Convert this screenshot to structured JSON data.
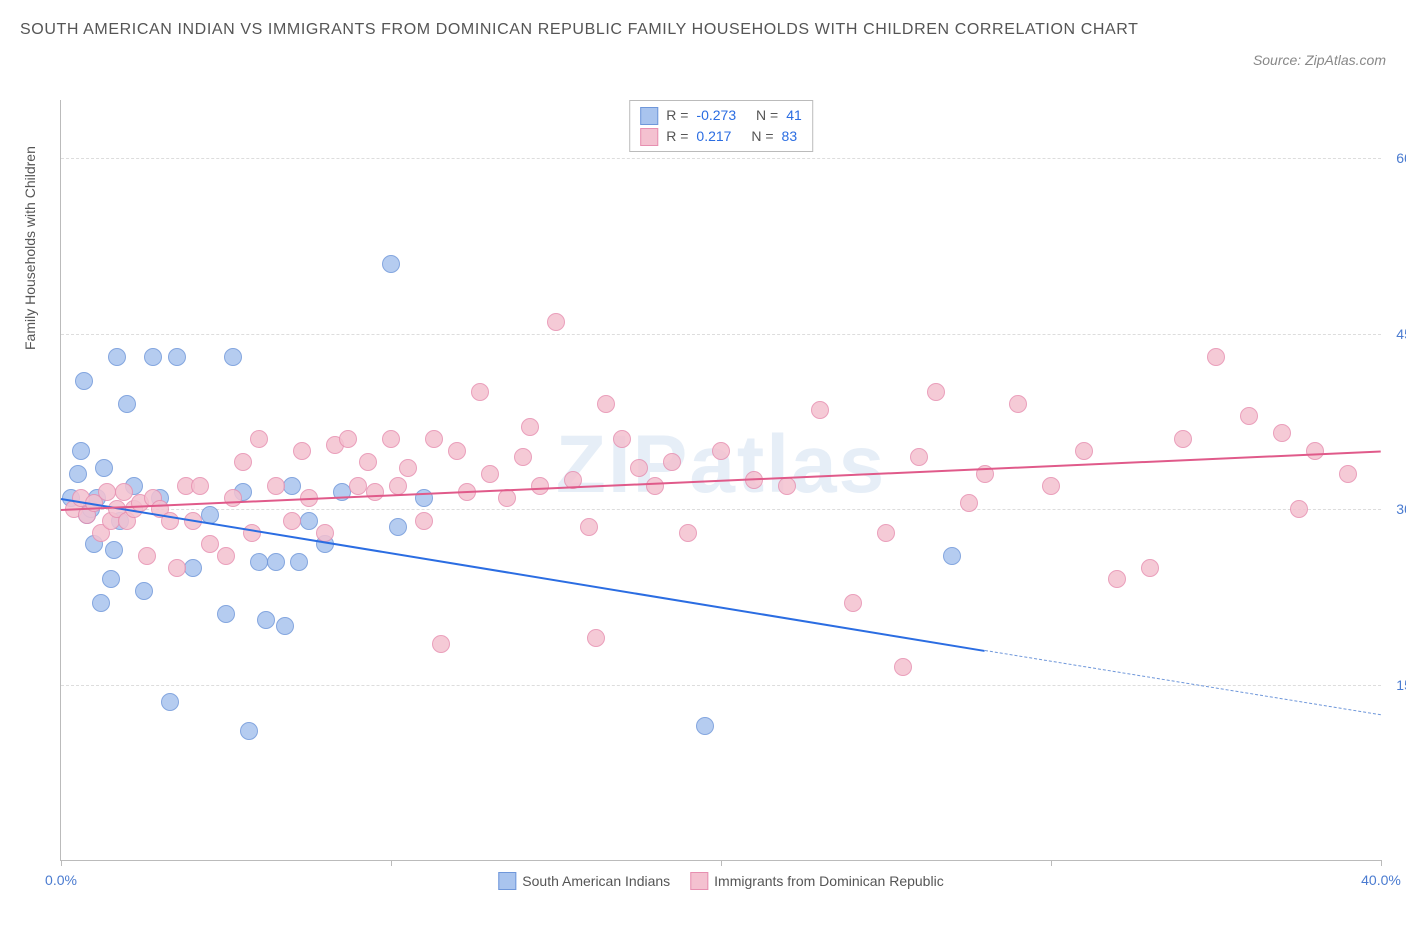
{
  "title": "SOUTH AMERICAN INDIAN VS IMMIGRANTS FROM DOMINICAN REPUBLIC FAMILY HOUSEHOLDS WITH CHILDREN CORRELATION CHART",
  "source_label": "Source: ZipAtlas.com",
  "watermark": "ZIPatlas",
  "yaxis_label": "Family Households with Children",
  "chart": {
    "type": "scatter",
    "background_color": "#ffffff",
    "grid_color": "#dddddd",
    "axis_color": "#bbbbbb",
    "xlim": [
      0,
      40
    ],
    "ylim": [
      0,
      65
    ],
    "x_ticks": [
      0,
      10,
      20,
      30,
      40
    ],
    "x_tick_labels": [
      "0.0%",
      "",
      "",
      "",
      "40.0%"
    ],
    "y_ticks": [
      15,
      30,
      45,
      60
    ],
    "y_tick_labels": [
      "15.0%",
      "30.0%",
      "45.0%",
      "60.0%"
    ],
    "marker_radius": 8,
    "marker_stroke_width": 1.5,
    "marker_fill_opacity": 0.25
  },
  "series": [
    {
      "id": "sai",
      "name": "South American Indians",
      "color_fill": "#a9c4ee",
      "color_stroke": "#6f97da",
      "r_label": "R =",
      "r_value": "-0.273",
      "n_label": "N =",
      "n_value": "41",
      "trend": {
        "x1": 0,
        "y1": 31,
        "x2": 28,
        "y2": 18,
        "color": "#2b6de2",
        "width": 2.5,
        "dash": "none"
      },
      "trend_ext": {
        "x1": 28,
        "y1": 18,
        "x2": 40,
        "y2": 12.5,
        "color": "#6f97da",
        "width": 1.5,
        "dash": "5,4"
      },
      "points": [
        [
          0.3,
          31
        ],
        [
          0.5,
          33
        ],
        [
          0.7,
          41
        ],
        [
          0.8,
          29.5
        ],
        [
          0.9,
          30
        ],
        [
          1.0,
          27
        ],
        [
          1.1,
          31
        ],
        [
          1.3,
          33.5
        ],
        [
          1.5,
          24
        ],
        [
          1.6,
          26.5
        ],
        [
          1.7,
          43
        ],
        [
          1.8,
          29
        ],
        [
          2.0,
          39
        ],
        [
          2.2,
          32
        ],
        [
          2.5,
          23
        ],
        [
          2.8,
          43
        ],
        [
          3.0,
          31
        ],
        [
          3.3,
          13.5
        ],
        [
          3.5,
          43
        ],
        [
          4.0,
          25
        ],
        [
          4.5,
          29.5
        ],
        [
          5.0,
          21
        ],
        [
          5.2,
          43
        ],
        [
          5.5,
          31.5
        ],
        [
          5.7,
          11
        ],
        [
          6.0,
          25.5
        ],
        [
          6.2,
          20.5
        ],
        [
          6.5,
          25.5
        ],
        [
          6.8,
          20
        ],
        [
          7.0,
          32
        ],
        [
          7.2,
          25.5
        ],
        [
          7.5,
          29
        ],
        [
          8.0,
          27
        ],
        [
          8.5,
          31.5
        ],
        [
          10.0,
          51
        ],
        [
          10.2,
          28.5
        ],
        [
          11.0,
          31
        ],
        [
          19.5,
          11.5
        ],
        [
          27.0,
          26
        ],
        [
          1.2,
          22
        ],
        [
          0.6,
          35
        ]
      ]
    },
    {
      "id": "dom",
      "name": "Immigrants from Dominican Republic",
      "color_fill": "#f4c1d0",
      "color_stroke": "#e78fb0",
      "r_label": "R =",
      "r_value": "0.217",
      "n_label": "N =",
      "n_value": "83",
      "trend": {
        "x1": 0,
        "y1": 30,
        "x2": 40,
        "y2": 35,
        "color": "#e05a8a",
        "width": 2.5,
        "dash": "none"
      },
      "points": [
        [
          0.4,
          30
        ],
        [
          0.6,
          31
        ],
        [
          0.8,
          29.5
        ],
        [
          1.0,
          30.5
        ],
        [
          1.2,
          28
        ],
        [
          1.4,
          31.5
        ],
        [
          1.5,
          29
        ],
        [
          1.7,
          30
        ],
        [
          1.9,
          31.5
        ],
        [
          2.0,
          29
        ],
        [
          2.2,
          30
        ],
        [
          2.4,
          30.5
        ],
        [
          2.6,
          26
        ],
        [
          2.8,
          31
        ],
        [
          3.0,
          30
        ],
        [
          3.3,
          29
        ],
        [
          3.5,
          25
        ],
        [
          3.8,
          32
        ],
        [
          4.0,
          29
        ],
        [
          4.2,
          32
        ],
        [
          4.5,
          27
        ],
        [
          5.0,
          26
        ],
        [
          5.2,
          31
        ],
        [
          5.5,
          34
        ],
        [
          5.8,
          28
        ],
        [
          6.0,
          36
        ],
        [
          6.5,
          32
        ],
        [
          7.0,
          29
        ],
        [
          7.3,
          35
        ],
        [
          7.5,
          31
        ],
        [
          8.0,
          28
        ],
        [
          8.3,
          35.5
        ],
        [
          8.7,
          36
        ],
        [
          9.0,
          32
        ],
        [
          9.3,
          34
        ],
        [
          9.5,
          31.5
        ],
        [
          10.0,
          36
        ],
        [
          10.2,
          32
        ],
        [
          10.5,
          33.5
        ],
        [
          11.0,
          29
        ],
        [
          11.3,
          36
        ],
        [
          11.5,
          18.5
        ],
        [
          12.0,
          35
        ],
        [
          12.3,
          31.5
        ],
        [
          12.7,
          40
        ],
        [
          13.0,
          33
        ],
        [
          13.5,
          31
        ],
        [
          14.0,
          34.5
        ],
        [
          14.2,
          37
        ],
        [
          14.5,
          32
        ],
        [
          15.0,
          46
        ],
        [
          15.5,
          32.5
        ],
        [
          16.0,
          28.5
        ],
        [
          16.2,
          19
        ],
        [
          16.5,
          39
        ],
        [
          17.0,
          36
        ],
        [
          17.5,
          33.5
        ],
        [
          18.0,
          32
        ],
        [
          18.5,
          34
        ],
        [
          19.0,
          28
        ],
        [
          20.0,
          35
        ],
        [
          21.0,
          32.5
        ],
        [
          22.0,
          32
        ],
        [
          23.0,
          38.5
        ],
        [
          24.0,
          22
        ],
        [
          25.0,
          28
        ],
        [
          25.5,
          16.5
        ],
        [
          26.0,
          34.5
        ],
        [
          26.5,
          40
        ],
        [
          27.5,
          30.5
        ],
        [
          28.0,
          33
        ],
        [
          29.0,
          39
        ],
        [
          30.0,
          32
        ],
        [
          31.0,
          35
        ],
        [
          32.0,
          24
        ],
        [
          33.0,
          25
        ],
        [
          34.0,
          36
        ],
        [
          35.0,
          43
        ],
        [
          36.0,
          38
        ],
        [
          37.0,
          36.5
        ],
        [
          37.5,
          30
        ],
        [
          38.0,
          35
        ],
        [
          39.0,
          33
        ]
      ]
    }
  ],
  "legend_bottom": [
    {
      "swatch_fill": "#a9c4ee",
      "swatch_stroke": "#6f97da",
      "label": "South American Indians"
    },
    {
      "swatch_fill": "#f4c1d0",
      "swatch_stroke": "#e78fb0",
      "label": "Immigrants from Dominican Republic"
    }
  ]
}
